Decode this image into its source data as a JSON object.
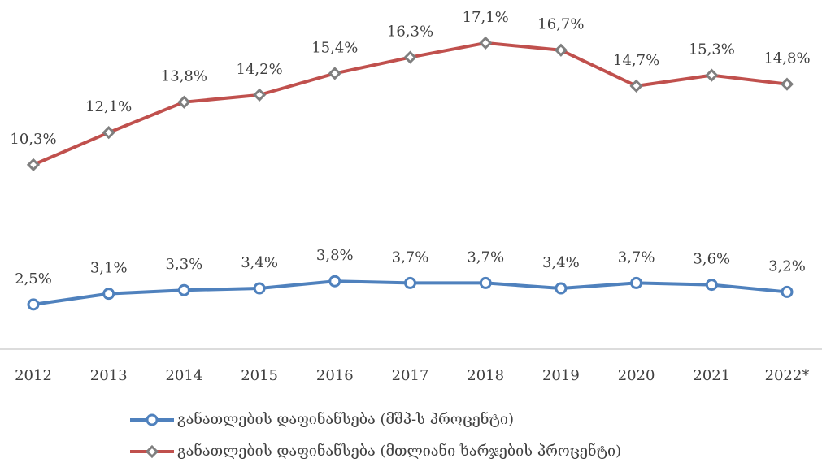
{
  "chart_data": {
    "type": "line",
    "categories": [
      "2012",
      "2013",
      "2014",
      "2015",
      "2016",
      "2017",
      "2018",
      "2019",
      "2020",
      "2021",
      "2022*"
    ],
    "series": [
      {
        "name": "განათლების დაფინანსება (მშპ-ს პროცენტი)",
        "color": "#4f81bd",
        "marker": "circle",
        "values": [
          2.5,
          3.1,
          3.3,
          3.4,
          3.8,
          3.7,
          3.7,
          3.4,
          3.7,
          3.6,
          3.2
        ],
        "value_labels": [
          "2,5%",
          "3,1%",
          "3,3%",
          "3,4%",
          "3,8%",
          "3,7%",
          "3,7%",
          "3,4%",
          "3,7%",
          "3,6%",
          "3,2%"
        ]
      },
      {
        "name": "განათლების დაფინანსება (მთლიანი ხარჯების პროცენტი)",
        "color": "#c0504d",
        "marker": "diamond",
        "values": [
          10.3,
          12.1,
          13.8,
          14.2,
          15.4,
          16.3,
          17.1,
          16.7,
          14.7,
          15.3,
          14.8
        ],
        "value_labels": [
          "10,3%",
          "12,1%",
          "13,8%",
          "14,2%",
          "15,4%",
          "16,3%",
          "17,1%",
          "16,7%",
          "14,7%",
          "15,3%",
          "14,8%"
        ]
      }
    ],
    "ylim": [
      0,
      19.5
    ],
    "legend": "bottom",
    "grid": false
  }
}
